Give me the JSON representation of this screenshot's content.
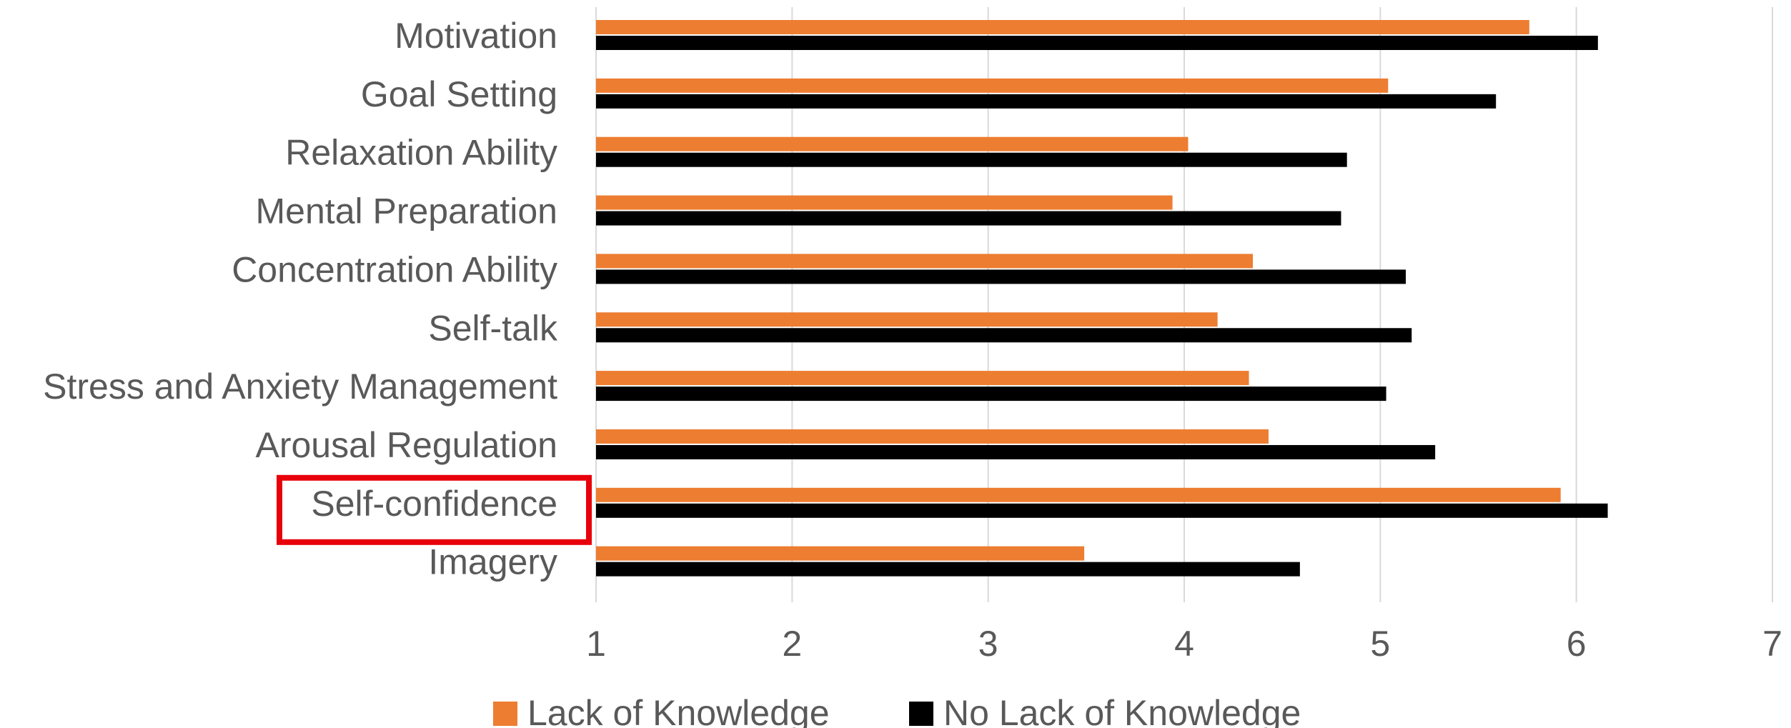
{
  "chart_data": {
    "type": "bar",
    "orientation": "horizontal",
    "categories": [
      "Motivation",
      "Goal Setting",
      "Relaxation Ability",
      "Mental Preparation",
      "Concentration Ability",
      "Self-talk",
      "Stress and Anxiety Management",
      "Arousal Regulation",
      "Self-confidence",
      "Imagery"
    ],
    "series": [
      {
        "name": "Lack of Knowledge",
        "color": "#ED7D31",
        "values": [
          5.76,
          5.04,
          4.02,
          3.94,
          4.35,
          4.17,
          4.33,
          4.43,
          5.92,
          3.49
        ]
      },
      {
        "name": "No Lack of Knowledge",
        "color": "#000000",
        "values": [
          6.11,
          5.59,
          4.83,
          4.8,
          5.13,
          5.16,
          5.03,
          5.28,
          6.16,
          4.59
        ]
      }
    ],
    "xlim": [
      1,
      7
    ],
    "xticks": [
      "1",
      "2",
      "3",
      "4",
      "5",
      "6",
      "7"
    ],
    "grid": true,
    "legend_position": "bottom",
    "highlighted_category": "Self-confidence",
    "highlight_color": "#E8000B",
    "title": "",
    "xlabel": "",
    "ylabel": ""
  }
}
